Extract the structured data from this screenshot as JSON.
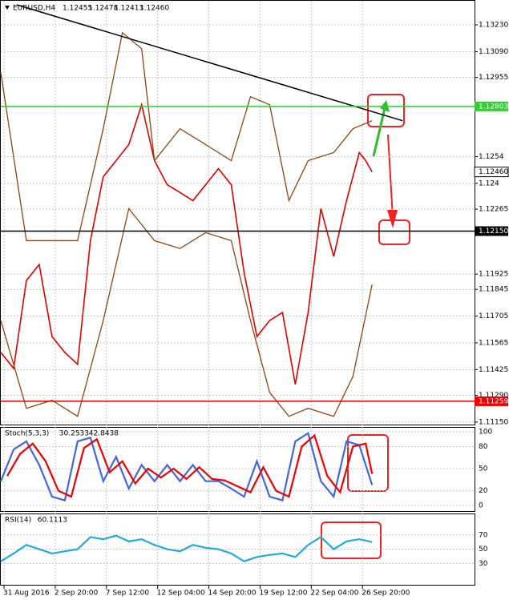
{
  "chart_data": {
    "type": "line",
    "title": "EURUSD,H4",
    "header_values": [
      1.12455,
      1.12478,
      1.12413,
      {
        "value": 1.1246,
        "label": "1.12460"
      }
    ],
    "xlim": [
      0,
      148
    ],
    "xticks": [
      {
        "value": 1,
        "label": "31 Aug 2016"
      },
      {
        "value": 17,
        "label": "2 Sep 20:00"
      },
      {
        "value": 33,
        "label": "7 Sep 12:00"
      },
      {
        "value": 49,
        "label": "12 Sep 04:00"
      },
      {
        "value": 65,
        "label": "14 Sep 20:00"
      },
      {
        "value": 81,
        "label": "19 Sep 12:00"
      },
      {
        "value": 97,
        "label": "22 Sep 04:00"
      },
      {
        "value": 113,
        "label": "26 Sep 20:00"
      }
    ],
    "ylim": [
      1.11137,
      1.13356
    ],
    "yticks": [
      {
        "value": 1.1323,
        "label": "1.13230"
      },
      {
        "value": 1.1309,
        "label": "1.13090"
      },
      1.12955,
      1.1254,
      1.124,
      1.12265,
      1.11925,
      1.11845,
      1.11705,
      1.11565,
      1.11425,
      {
        "value": 1.1129,
        "label": "1.11290"
      },
      {
        "value": 1.1115,
        "label": "1.11150"
      }
    ],
    "yticks_fix": null,
    "levels": [
      {
        "value": 1.12803,
        "color": "#33cc33",
        "text_color": "#ffffff"
      },
      {
        "value": {
          "value": 1.1215,
          "label": "1.12150"
        },
        "color": "#000000",
        "text_color": "#ffffff"
      },
      {
        "value": 1.11259,
        "color": "#ee0000",
        "text_color": "#ffffff"
      }
    ],
    "last_price": {
      "value": 1.1246,
      "label": "1.12460"
    },
    "trendline": {
      "x": [
        5,
        125.5
      ],
      "values": [
        1.13335,
        1.12728
      ],
      "color": "#000000"
    },
    "series": [
      {
        "color": "#e00000",
        "x": [
          0,
          4,
          8,
          12,
          16,
          20,
          24,
          28,
          32,
          36,
          40,
          44,
          48,
          52,
          56,
          60,
          64,
          68,
          72,
          76,
          80,
          84,
          88,
          92,
          96,
          100,
          104,
          108,
          112,
          114,
          116
        ],
        "values": [
          1.11515,
          1.11431,
          1.11891,
          1.11975,
          1.11598,
          1.11515,
          1.11452,
          1.121,
          1.12435,
          1.12519,
          1.12603,
          1.12812,
          1.12519,
          1.12393,
          1.12352,
          1.1231,
          1.12393,
          1.12477,
          1.12393,
          1.11933,
          1.11598,
          1.11682,
          1.11724,
          1.11347,
          1.11724,
          1.12268,
          1.12017,
          1.1231,
          1.12561,
          1.12519,
          1.1246
        ]
      },
      {
        "color": "#8b4513",
        "x": [
          0,
          8,
          16,
          24,
          32,
          38,
          44,
          48,
          56,
          64,
          72,
          78,
          84,
          90,
          96,
          104,
          110,
          116
        ],
        "values": [
          1.12979,
          1.121,
          1.121,
          1.121,
          1.12686,
          1.13189,
          1.13105,
          1.12519,
          1.12686,
          1.12603,
          1.12519,
          1.12854,
          1.12812,
          1.1231,
          1.12519,
          1.12561,
          1.12686,
          1.12728
        ]
      },
      {
        "color": "#8b4513",
        "x": [
          0,
          8,
          16,
          24,
          32,
          40,
          48,
          56,
          64,
          72,
          78,
          84,
          90,
          96,
          104,
          110,
          116
        ],
        "values": [
          1.11682,
          1.11222,
          1.11264,
          1.1118,
          1.11682,
          1.12268,
          1.121,
          1.12059,
          1.12142,
          1.121,
          1.11682,
          1.11305,
          1.1118,
          1.11222,
          1.1118,
          1.11389,
          1.1187
        ]
      }
    ],
    "indicators": [
      {
        "label": "Stoch(5,3,3)",
        "readings": [
          30.2533,
          42.8438
        ],
        "ylim": [
          -7.5,
          105.4
        ],
        "yticks": [
          100,
          80,
          50,
          20,
          0
        ],
        "series": [
          {
            "color": "#4466dd",
            "x": [
              0,
              4,
              8,
              12,
              16,
              20,
              24,
              28,
              32,
              36,
              40,
              44,
              48,
              52,
              56,
              60,
              64,
              68,
              72,
              76,
              80,
              84,
              88,
              92,
              96,
              100,
              104,
              108,
              112,
              116
            ],
            "values": [
              33,
              76,
              87,
              55,
              12,
              7,
              87,
              92,
              33,
              66,
              23,
              55,
              33,
              55,
              33,
              55,
              33,
              33,
              23,
              12,
              60,
              12,
              7,
              87,
              98,
              33,
              12,
              87,
              82,
              28
            ]
          },
          {
            "color": "#ee0000",
            "x": [
              2,
              6,
              10,
              14,
              18,
              22,
              26,
              30,
              34,
              38,
              42,
              46,
              50,
              54,
              58,
              62,
              66,
              70,
              74,
              78,
              82,
              86,
              90,
              94,
              98,
              102,
              106,
              110,
              114,
              116
            ],
            "values": [
              40,
              70,
              84,
              60,
              20,
              12,
              78,
              90,
              45,
              60,
              30,
              50,
              38,
              50,
              36,
              52,
              36,
              34,
              26,
              18,
              52,
              20,
              12,
              80,
              95,
              40,
              18,
              80,
              84,
              43
            ]
          }
        ]
      },
      {
        "label": "RSI(14)",
        "readings": [
          60.1113
        ],
        "ylim": [
          0,
          99
        ],
        "yticks": [
          70,
          50,
          30
        ],
        "series": [
          {
            "color": "#22aadd",
            "x": [
              0,
              4,
              8,
              12,
              16,
              20,
              24,
              28,
              32,
              36,
              40,
              44,
              48,
              52,
              56,
              60,
              64,
              68,
              72,
              76,
              80,
              84,
              88,
              92,
              96,
              100,
              104,
              108,
              112,
              116
            ],
            "values": [
              33,
              44,
              56,
              50,
              44,
              47,
              50,
              67,
              64,
              69,
              61,
              64,
              56,
              50,
              47,
              56,
              52,
              50,
              44,
              33,
              39,
              42,
              44,
              39,
              56,
              67,
              50,
              61,
              64,
              60
            ]
          }
        ]
      }
    ]
  }
}
